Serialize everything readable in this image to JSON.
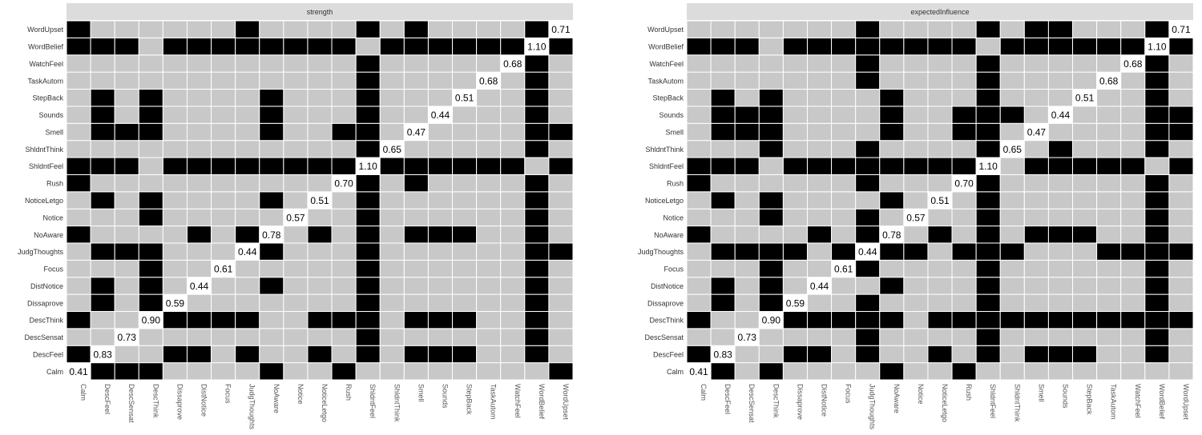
{
  "chart_data": [
    {
      "type": "heatmap",
      "title": "strength",
      "rows": [
        "Calm",
        "DescFeel",
        "DescSensat",
        "DescThink",
        "Dissaprove",
        "DistNotice",
        "Focus",
        "JudgThoughts",
        "NoAware",
        "Notice",
        "NoticeLetgo",
        "Rush",
        "ShldntFeel",
        "ShldntThink",
        "Smell",
        "Sounds",
        "StepBack",
        "TaskAutom",
        "WatchFeel",
        "WordBelief",
        "WordUpset"
      ],
      "columns": [
        "Calm",
        "DescFeel",
        "DescSensat",
        "DescThink",
        "Dissaprove",
        "DistNotice",
        "Focus",
        "JudgThoughts",
        "NoAware",
        "Notice",
        "NoticeLetgo",
        "Rush",
        "ShldntFeel",
        "ShldntThink",
        "Smell",
        "Sounds",
        "StepBack",
        "TaskAutom",
        "WatchFeel",
        "WordBelief",
        "WordUpset"
      ],
      "diagonal_values": [
        "0.41",
        "0.83",
        "0.73",
        "0.90",
        "0.59",
        "0.44",
        "0.61",
        "0.44",
        "0.78",
        "0.57",
        "0.51",
        "0.70",
        "1.10",
        "0.65",
        "0.47",
        "0.44",
        "0.51",
        "0.68",
        "0.68",
        "1.10",
        "0.71"
      ],
      "cell_legend": {
        "1": "significant difference (black)",
        "0": "non-significant (grey)"
      },
      "cells": [
        [
          2,
          1,
          1,
          1,
          0,
          0,
          0,
          0,
          1,
          0,
          0,
          1,
          0,
          0,
          0,
          0,
          0,
          0,
          0,
          0,
          1
        ],
        [
          1,
          2,
          0,
          0,
          1,
          1,
          0,
          1,
          0,
          0,
          1,
          0,
          1,
          0,
          1,
          1,
          1,
          0,
          0,
          1,
          0
        ],
        [
          0,
          0,
          2,
          0,
          0,
          0,
          0,
          0,
          0,
          0,
          0,
          0,
          1,
          0,
          0,
          0,
          0,
          0,
          0,
          1,
          0
        ],
        [
          1,
          0,
          0,
          2,
          1,
          1,
          1,
          1,
          0,
          0,
          1,
          1,
          1,
          0,
          1,
          1,
          1,
          0,
          0,
          1,
          0
        ],
        [
          0,
          1,
          0,
          1,
          2,
          0,
          0,
          0,
          0,
          0,
          0,
          0,
          1,
          0,
          0,
          0,
          0,
          0,
          0,
          1,
          0
        ],
        [
          0,
          1,
          0,
          1,
          0,
          2,
          0,
          0,
          1,
          0,
          0,
          0,
          1,
          0,
          0,
          0,
          0,
          0,
          0,
          1,
          0
        ],
        [
          0,
          0,
          0,
          1,
          0,
          0,
          2,
          0,
          0,
          0,
          0,
          0,
          1,
          0,
          0,
          0,
          0,
          0,
          0,
          1,
          0
        ],
        [
          0,
          1,
          1,
          1,
          0,
          0,
          0,
          2,
          1,
          0,
          0,
          0,
          1,
          0,
          0,
          0,
          0,
          0,
          0,
          1,
          1
        ],
        [
          1,
          0,
          0,
          0,
          0,
          1,
          0,
          1,
          2,
          0,
          1,
          0,
          1,
          0,
          1,
          1,
          1,
          0,
          0,
          1,
          0
        ],
        [
          0,
          0,
          0,
          1,
          0,
          0,
          0,
          0,
          0,
          2,
          0,
          0,
          1,
          0,
          0,
          0,
          0,
          0,
          0,
          1,
          0
        ],
        [
          0,
          1,
          0,
          1,
          0,
          0,
          0,
          0,
          1,
          0,
          2,
          0,
          1,
          0,
          0,
          0,
          0,
          0,
          0,
          1,
          0
        ],
        [
          1,
          0,
          0,
          0,
          0,
          0,
          0,
          0,
          0,
          0,
          0,
          2,
          1,
          0,
          1,
          0,
          0,
          0,
          0,
          1,
          0
        ],
        [
          1,
          1,
          1,
          0,
          1,
          1,
          1,
          1,
          1,
          1,
          1,
          1,
          2,
          1,
          1,
          1,
          1,
          1,
          1,
          0,
          1
        ],
        [
          0,
          0,
          0,
          0,
          0,
          0,
          0,
          0,
          0,
          0,
          0,
          0,
          1,
          2,
          0,
          0,
          0,
          0,
          0,
          1,
          0
        ],
        [
          0,
          1,
          1,
          1,
          0,
          0,
          0,
          0,
          1,
          0,
          0,
          1,
          1,
          0,
          2,
          0,
          0,
          0,
          0,
          1,
          1
        ],
        [
          0,
          1,
          0,
          1,
          0,
          0,
          0,
          0,
          1,
          0,
          0,
          0,
          1,
          0,
          0,
          2,
          0,
          0,
          0,
          1,
          0
        ],
        [
          0,
          1,
          0,
          1,
          0,
          0,
          0,
          0,
          1,
          0,
          0,
          0,
          1,
          0,
          0,
          0,
          2,
          0,
          0,
          1,
          0
        ],
        [
          0,
          0,
          0,
          0,
          0,
          0,
          0,
          0,
          0,
          0,
          0,
          0,
          1,
          0,
          0,
          0,
          0,
          2,
          0,
          1,
          0
        ],
        [
          0,
          0,
          0,
          0,
          0,
          0,
          0,
          0,
          0,
          0,
          0,
          0,
          1,
          0,
          0,
          0,
          0,
          0,
          2,
          1,
          0
        ],
        [
          1,
          1,
          1,
          0,
          1,
          1,
          1,
          1,
          1,
          1,
          1,
          1,
          0,
          1,
          1,
          1,
          1,
          1,
          1,
          2,
          1
        ],
        [
          1,
          0,
          0,
          0,
          0,
          0,
          0,
          1,
          0,
          0,
          0,
          0,
          1,
          0,
          1,
          0,
          0,
          0,
          0,
          1,
          2
        ]
      ]
    },
    {
      "type": "heatmap",
      "title": "expectedInfluence",
      "rows": [
        "Calm",
        "DescFeel",
        "DescSensat",
        "DescThink",
        "Dissaprove",
        "DistNotice",
        "Focus",
        "JudgThoughts",
        "NoAware",
        "Notice",
        "NoticeLetgo",
        "Rush",
        "ShldntFeel",
        "ShldntThink",
        "Smell",
        "Sounds",
        "StepBack",
        "TaskAutom",
        "WatchFeel",
        "WordBelief",
        "WordUpset"
      ],
      "columns": [
        "Calm",
        "DescFeel",
        "DescSensat",
        "DescThink",
        "Dissaprove",
        "DistNotice",
        "Focus",
        "JudgThoughts",
        "NoAware",
        "Notice",
        "NoticeLetgo",
        "Rush",
        "ShldntFeel",
        "ShldntThink",
        "Smell",
        "Sounds",
        "StepBack",
        "TaskAutom",
        "WatchFeel",
        "WordBelief",
        "WordUpset"
      ],
      "diagonal_values": [
        "0.41",
        "0.83",
        "0.73",
        "0.90",
        "0.59",
        "0.44",
        "0.61",
        "0.44",
        "0.78",
        "0.57",
        "0.51",
        "0.70",
        "1.10",
        "0.65",
        "0.47",
        "0.44",
        "0.51",
        "0.68",
        "0.68",
        "1.10",
        "0.71"
      ],
      "cell_legend": {
        "1": "significant difference (black)",
        "0": "non-significant (grey)"
      },
      "cells": [
        [
          2,
          1,
          0,
          1,
          0,
          0,
          0,
          0,
          1,
          0,
          0,
          1,
          0,
          0,
          0,
          0,
          0,
          0,
          0,
          0,
          0
        ],
        [
          1,
          2,
          0,
          0,
          1,
          1,
          0,
          1,
          0,
          0,
          1,
          0,
          1,
          0,
          1,
          1,
          1,
          0,
          0,
          1,
          0
        ],
        [
          0,
          0,
          2,
          0,
          0,
          0,
          0,
          1,
          0,
          0,
          0,
          0,
          1,
          0,
          0,
          0,
          0,
          0,
          0,
          1,
          0
        ],
        [
          1,
          0,
          0,
          2,
          1,
          1,
          1,
          1,
          1,
          0,
          1,
          1,
          1,
          1,
          1,
          1,
          1,
          1,
          1,
          1,
          1
        ],
        [
          0,
          1,
          0,
          1,
          2,
          0,
          0,
          1,
          0,
          0,
          0,
          0,
          1,
          0,
          0,
          0,
          0,
          0,
          0,
          1,
          0
        ],
        [
          0,
          1,
          0,
          1,
          0,
          2,
          0,
          0,
          1,
          0,
          0,
          0,
          1,
          0,
          0,
          0,
          0,
          0,
          0,
          1,
          0
        ],
        [
          0,
          0,
          0,
          1,
          0,
          0,
          2,
          1,
          0,
          0,
          0,
          0,
          1,
          0,
          0,
          0,
          0,
          0,
          0,
          1,
          0
        ],
        [
          0,
          1,
          1,
          1,
          1,
          0,
          1,
          2,
          1,
          1,
          0,
          1,
          1,
          1,
          0,
          0,
          0,
          1,
          1,
          1,
          1
        ],
        [
          1,
          0,
          0,
          0,
          0,
          1,
          0,
          1,
          2,
          0,
          1,
          0,
          1,
          0,
          1,
          1,
          1,
          0,
          0,
          1,
          0
        ],
        [
          0,
          0,
          0,
          1,
          0,
          0,
          0,
          1,
          0,
          2,
          0,
          0,
          1,
          0,
          0,
          0,
          0,
          0,
          0,
          1,
          0
        ],
        [
          0,
          1,
          0,
          1,
          0,
          0,
          0,
          0,
          1,
          0,
          2,
          0,
          1,
          0,
          0,
          0,
          0,
          0,
          0,
          1,
          0
        ],
        [
          1,
          0,
          0,
          0,
          0,
          0,
          0,
          1,
          0,
          0,
          0,
          2,
          1,
          0,
          0,
          0,
          0,
          0,
          0,
          1,
          0
        ],
        [
          1,
          1,
          1,
          0,
          1,
          1,
          1,
          1,
          1,
          1,
          1,
          1,
          2,
          0,
          1,
          1,
          1,
          1,
          1,
          0,
          1
        ],
        [
          0,
          0,
          0,
          1,
          0,
          0,
          0,
          1,
          0,
          0,
          0,
          0,
          1,
          2,
          0,
          1,
          0,
          0,
          0,
          1,
          0
        ],
        [
          0,
          1,
          1,
          1,
          0,
          0,
          0,
          0,
          1,
          0,
          0,
          1,
          1,
          0,
          2,
          0,
          0,
          0,
          0,
          1,
          1
        ],
        [
          0,
          1,
          1,
          1,
          0,
          0,
          0,
          0,
          1,
          0,
          0,
          1,
          1,
          1,
          0,
          2,
          0,
          0,
          0,
          1,
          1
        ],
        [
          0,
          1,
          0,
          1,
          0,
          0,
          0,
          0,
          1,
          0,
          0,
          0,
          1,
          0,
          0,
          0,
          2,
          0,
          0,
          1,
          0
        ],
        [
          0,
          0,
          0,
          0,
          0,
          0,
          0,
          1,
          0,
          0,
          0,
          0,
          1,
          0,
          0,
          0,
          0,
          2,
          0,
          1,
          0
        ],
        [
          0,
          0,
          0,
          0,
          0,
          0,
          0,
          1,
          0,
          0,
          0,
          0,
          1,
          0,
          0,
          0,
          0,
          0,
          2,
          1,
          0
        ],
        [
          1,
          1,
          1,
          0,
          1,
          1,
          1,
          1,
          1,
          1,
          1,
          1,
          0,
          1,
          1,
          1,
          1,
          1,
          1,
          2,
          1
        ],
        [
          0,
          0,
          0,
          0,
          0,
          0,
          0,
          1,
          0,
          0,
          0,
          0,
          1,
          0,
          1,
          1,
          0,
          0,
          0,
          1,
          2
        ]
      ]
    }
  ],
  "colors": {
    "significant": "#000000",
    "nonsignificant": "#c8c8c8",
    "diagonal": "#ffffff",
    "cell_border": "#ffffff",
    "title_strip": "#dcdcdc"
  }
}
